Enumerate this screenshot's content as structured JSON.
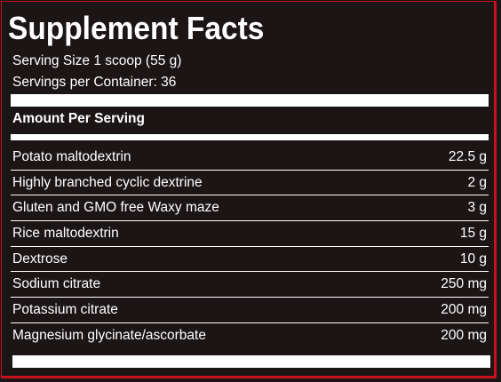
{
  "label": {
    "title": "Supplement Facts",
    "serving_size": "Serving Size 1 scoop (55 g)",
    "servings_per_container": "Servings per Container: 36",
    "amount_header": "Amount Per Serving",
    "ingredients": [
      {
        "name": "Potato maltodextrin",
        "amount": "22.5 g"
      },
      {
        "name": "Highly branched cyclic dextrine",
        "amount": "2 g"
      },
      {
        "name": "Gluten and GMO free Waxy maze",
        "amount": "3 g"
      },
      {
        "name": "Rice maltodextrin",
        "amount": "15 g"
      },
      {
        "name": "Dextrose",
        "amount": "10 g"
      },
      {
        "name": "Sodium citrate",
        "amount": "250 mg"
      },
      {
        "name": "Potassium citrate",
        "amount": "200 mg"
      },
      {
        "name": "Magnesium glycinate/ascorbate",
        "amount": "200 mg"
      }
    ]
  },
  "colors": {
    "background": "#1c1516",
    "text": "#ffffff",
    "border": "#c8101e"
  }
}
